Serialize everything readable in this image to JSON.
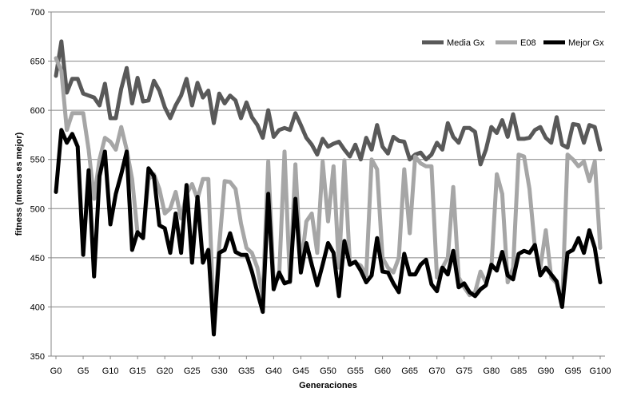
{
  "chart_data": {
    "type": "line",
    "xlabel": "Generaciones",
    "ylabel": "fitness (menos es mejor)",
    "ylim": [
      350,
      700
    ],
    "yticks": [
      350,
      400,
      450,
      500,
      550,
      600,
      650,
      700
    ],
    "xtick_labels": [
      "G0",
      "G5",
      "G10",
      "G15",
      "G20",
      "G25",
      "G30",
      "G35",
      "G40",
      "G45",
      "G50",
      "G55",
      "G60",
      "G65",
      "G70",
      "G75",
      "G80",
      "G85",
      "G90",
      "G95",
      "G100"
    ],
    "grid": "horizontal",
    "legend": "top-right",
    "x": [
      0,
      1,
      2,
      3,
      4,
      5,
      6,
      7,
      8,
      9,
      10,
      11,
      12,
      13,
      14,
      15,
      16,
      17,
      18,
      19,
      20,
      21,
      22,
      23,
      24,
      25,
      26,
      27,
      28,
      29,
      30,
      31,
      32,
      33,
      34,
      35,
      36,
      37,
      38,
      39,
      40,
      41,
      42,
      43,
      44,
      45,
      46,
      47,
      48,
      49,
      50,
      51,
      52,
      53,
      54,
      55,
      56,
      57,
      58,
      59,
      60,
      61,
      62,
      63,
      64,
      65,
      66,
      67,
      68,
      69,
      70,
      71,
      72,
      73,
      74,
      75,
      76,
      77,
      78,
      79,
      80,
      81,
      82,
      83,
      84,
      85,
      86,
      87,
      88,
      89,
      90,
      91,
      92,
      93,
      94,
      95,
      96,
      97,
      98,
      99,
      100
    ],
    "series": [
      {
        "name": "Media Gx",
        "color": "#595959",
        "values": [
          635,
          670,
          618,
          632,
          632,
          617,
          615,
          613,
          605,
          627,
          592,
          592,
          622,
          643,
          607,
          633,
          609,
          610,
          630,
          620,
          603,
          592,
          605,
          615,
          632,
          605,
          628,
          613,
          620,
          587,
          617,
          607,
          615,
          610,
          592,
          608,
          593,
          585,
          572,
          600,
          573,
          580,
          582,
          580,
          597,
          585,
          572,
          565,
          555,
          571,
          563,
          566,
          568,
          560,
          553,
          565,
          550,
          572,
          560,
          585,
          563,
          556,
          573,
          569,
          568,
          550,
          555,
          557,
          550,
          555,
          567,
          560,
          587,
          573,
          567,
          582,
          582,
          578,
          545,
          560,
          583,
          577,
          590,
          573,
          596,
          571,
          571,
          572,
          580,
          583,
          572,
          567,
          593,
          565,
          562,
          586,
          585,
          567,
          585,
          583,
          560
        ]
      },
      {
        "name": "E08",
        "color": "#a6a6a6",
        "values": [
          653,
          640,
          580,
          597,
          597,
          597,
          560,
          510,
          550,
          572,
          568,
          560,
          583,
          560,
          530,
          475,
          470,
          530,
          535,
          520,
          495,
          500,
          517,
          490,
          515,
          525,
          510,
          530,
          530,
          385,
          462,
          528,
          527,
          520,
          485,
          460,
          455,
          440,
          410,
          548,
          425,
          430,
          558,
          425,
          545,
          440,
          487,
          495,
          455,
          548,
          487,
          543,
          440,
          549,
          445,
          445,
          442,
          432,
          550,
          540,
          450,
          440,
          435,
          450,
          540,
          475,
          553,
          546,
          543,
          543,
          430,
          440,
          450,
          522,
          430,
          420,
          412,
          415,
          436,
          425,
          440,
          535,
          515,
          425,
          440,
          555,
          553,
          520,
          460,
          440,
          478,
          430,
          424,
          400,
          555,
          550,
          543,
          548,
          528,
          548,
          460
        ]
      },
      {
        "name": "Mejor Gx",
        "color": "#000000",
        "values": [
          517,
          580,
          567,
          576,
          563,
          453,
          539,
          431,
          533,
          558,
          484,
          515,
          535,
          558,
          458,
          476,
          470,
          541,
          533,
          483,
          480,
          455,
          495,
          455,
          524,
          445,
          512,
          445,
          458,
          372,
          455,
          458,
          475,
          456,
          453,
          453,
          436,
          415,
          395,
          515,
          418,
          435,
          424,
          426,
          510,
          435,
          465,
          443,
          422,
          443,
          465,
          455,
          411,
          467,
          443,
          446,
          437,
          425,
          432,
          470,
          436,
          435,
          424,
          415,
          454,
          433,
          433,
          443,
          448,
          423,
          416,
          440,
          433,
          457,
          420,
          424,
          415,
          411,
          418,
          422,
          443,
          437,
          456,
          432,
          428,
          454,
          457,
          455,
          463,
          432,
          440,
          433,
          426,
          400,
          455,
          458,
          470,
          455,
          478,
          460,
          425
        ]
      }
    ]
  }
}
